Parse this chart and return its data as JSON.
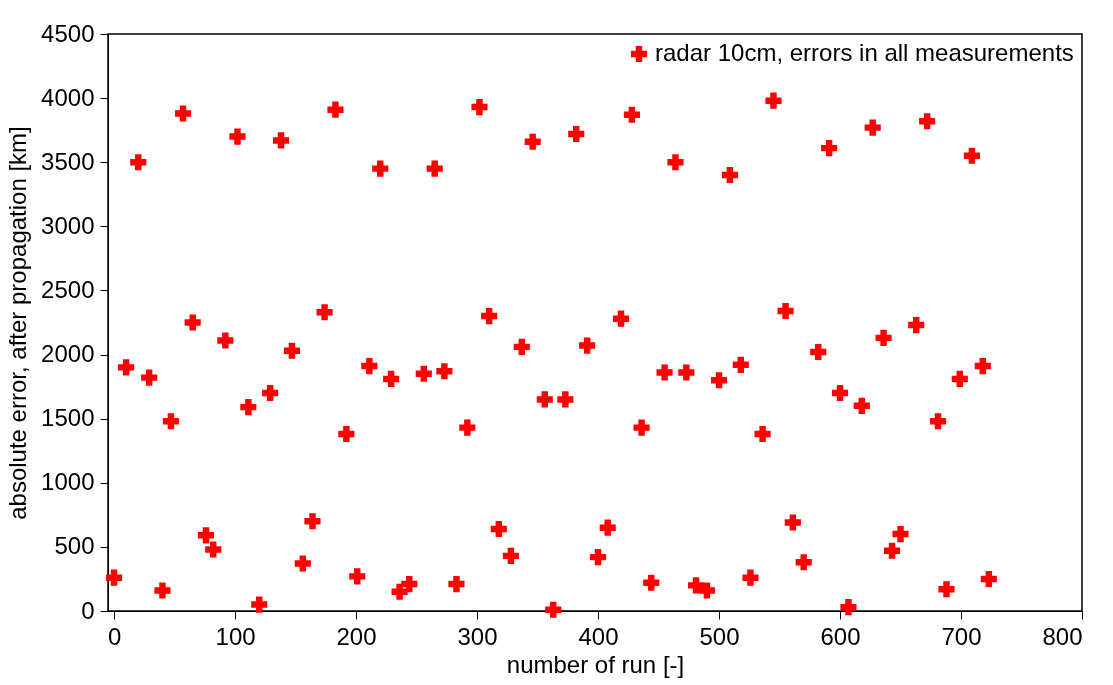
{
  "chart_data": {
    "type": "scatter",
    "xlabel": "number of run [-]",
    "ylabel": "absolute error, after propagation [km]",
    "xlim": [
      -5,
      800
    ],
    "xticks": [
      0,
      100,
      200,
      300,
      400,
      500,
      600,
      700,
      800
    ],
    "ylim": [
      0,
      4500
    ],
    "yticks": [
      0,
      500,
      1000,
      1500,
      2000,
      2500,
      3000,
      3500,
      4000,
      4500
    ],
    "grid": false,
    "legend": "top right",
    "marker": "cross",
    "series": [
      {
        "name": "radar 10cm, errors in all measurements",
        "color": "#ff0000",
        "x": [
          0,
          40,
          76,
          82,
          120,
          156,
          164,
          201,
          236,
          244,
          283,
          318,
          328,
          363,
          400,
          408,
          444,
          481,
          490,
          526,
          561,
          570,
          607,
          643,
          650,
          688,
          723,
          10,
          29,
          47,
          65,
          92,
          111,
          129,
          147,
          174,
          192,
          211,
          229,
          256,
          273,
          292,
          310,
          337,
          356,
          373,
          391,
          419,
          436,
          455,
          473,
          500,
          518,
          536,
          555,
          582,
          600,
          618,
          636,
          663,
          681,
          699,
          718,
          20,
          57,
          102,
          138,
          183,
          220,
          265,
          302,
          346,
          382,
          428,
          464,
          509,
          545,
          591,
          627,
          672,
          709
        ],
        "values": [
          260,
          160,
          590,
          480,
          50,
          370,
          700,
          270,
          150,
          210,
          210,
          640,
          430,
          10,
          420,
          650,
          220,
          200,
          160,
          260,
          690,
          380,
          30,
          470,
          600,
          170,
          250,
          1900,
          1820,
          1480,
          2250,
          2110,
          1590,
          1700,
          2030,
          2330,
          1380,
          1910,
          1810,
          1850,
          1870,
          1430,
          2300,
          2060,
          1650,
          1650,
          2070,
          2280,
          1430,
          1860,
          1860,
          1800,
          1920,
          1380,
          2340,
          2020,
          1700,
          1600,
          2130,
          2230,
          1480,
          1810,
          1910,
          3500,
          3880,
          3700,
          3670,
          3910,
          3450,
          3450,
          3930,
          3660,
          3720,
          3870,
          3500,
          3400,
          3980,
          3610,
          3770,
          3820,
          3550
        ]
      }
    ]
  }
}
